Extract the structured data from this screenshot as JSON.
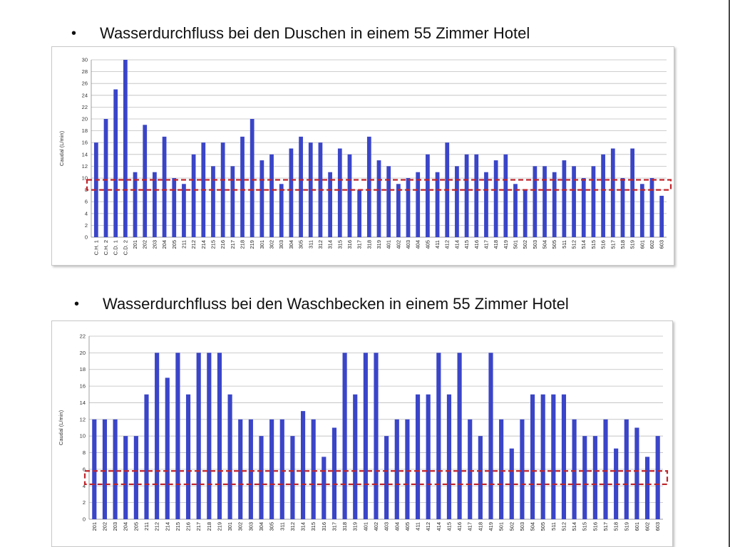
{
  "headings": {
    "bullet": "•",
    "shower": "Wasserdurchfluss bei den Duschen in einem 55 Zimmer Hotel",
    "sink": "Wasserdurchfluss bei den Waschbecken in einem 55 Zimmer Hotel"
  },
  "colors": {
    "bar": "#3a45c8",
    "band": "#c0242a",
    "grid": "#bdbdbd"
  },
  "chart_data": [
    {
      "type": "bar",
      "title": "",
      "ylabel": "Caudal (L/min)",
      "ylim": [
        0,
        30
      ],
      "ystep": 2,
      "grid": true,
      "band": [
        8,
        9.7
      ],
      "categories": [
        "C.H. 1",
        "C.H. 2",
        "C.D. 1",
        "C.D. 2",
        "201",
        "202",
        "203",
        "204",
        "205",
        "211",
        "212",
        "214",
        "215",
        "216",
        "217",
        "218",
        "219",
        "301",
        "302",
        "303",
        "304",
        "305",
        "311",
        "312",
        "314",
        "315",
        "316",
        "317",
        "318",
        "319",
        "401",
        "402",
        "403",
        "404",
        "405",
        "411",
        "412",
        "414",
        "415",
        "416",
        "417",
        "418",
        "419",
        "501",
        "502",
        "503",
        "504",
        "505",
        "511",
        "512",
        "514",
        "515",
        "516",
        "517",
        "518",
        "519",
        "601",
        "602",
        "603"
      ],
      "values": [
        16,
        20,
        25,
        30,
        11,
        19,
        11,
        17,
        10,
        9,
        14,
        16,
        12,
        16,
        12,
        17,
        20,
        13,
        14,
        9,
        15,
        17,
        16,
        16,
        11,
        15,
        14,
        8,
        17,
        13,
        12,
        9,
        10,
        11,
        14,
        11,
        16,
        12,
        14,
        14,
        11,
        13,
        14,
        9,
        8,
        12,
        12,
        11,
        13,
        12,
        10,
        12,
        14,
        15,
        10,
        15,
        9,
        10,
        7
      ]
    },
    {
      "type": "bar",
      "title": "",
      "ylabel": "Caudal (L/min)",
      "ylim": [
        0,
        22
      ],
      "ystep": 2,
      "grid": true,
      "band": [
        4.2,
        5.8
      ],
      "categories": [
        "201",
        "202",
        "203",
        "204",
        "205",
        "211",
        "212",
        "214",
        "215",
        "216",
        "217",
        "218",
        "219",
        "301",
        "302",
        "303",
        "304",
        "305",
        "311",
        "312",
        "314",
        "315",
        "316",
        "317",
        "318",
        "319",
        "401",
        "402",
        "403",
        "404",
        "405",
        "411",
        "412",
        "414",
        "415",
        "416",
        "417",
        "418",
        "419",
        "501",
        "502",
        "503",
        "504",
        "505",
        "511",
        "512",
        "514",
        "515",
        "516",
        "517",
        "518",
        "519",
        "601",
        "602",
        "603"
      ],
      "values": [
        12,
        12,
        12,
        10,
        10,
        15,
        20,
        17,
        20,
        15,
        20,
        20,
        20,
        15,
        12,
        12,
        10,
        12,
        12,
        10,
        13,
        12,
        7.5,
        11,
        20,
        15,
        20,
        20,
        10,
        12,
        12,
        15,
        15,
        20,
        15,
        20,
        12,
        10,
        20,
        12,
        8.5,
        12,
        15,
        15,
        15,
        15,
        12,
        10,
        10,
        12,
        8.5,
        12,
        11,
        7.5,
        10
      ]
    }
  ]
}
